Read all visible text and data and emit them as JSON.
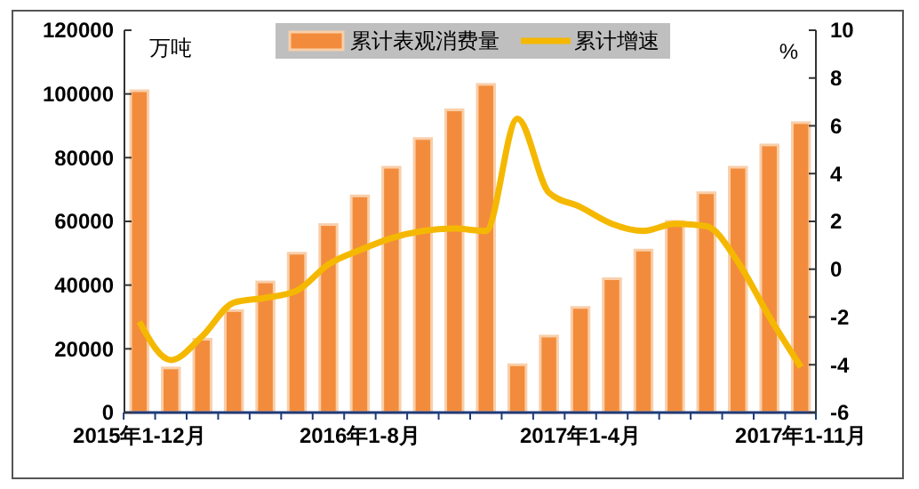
{
  "chart_data": {
    "type": "bar",
    "categories": [
      "2015年1-12月",
      null,
      null,
      null,
      null,
      null,
      null,
      "2016年1-8月",
      null,
      null,
      null,
      null,
      null,
      null,
      "2017年1-4月",
      null,
      null,
      null,
      null,
      null,
      null,
      "2017年1-11月"
    ],
    "series": [
      {
        "name": "累计表观消费量",
        "color": "#f28c3c",
        "values": [
          101000,
          14000,
          23000,
          32000,
          41000,
          50000,
          59000,
          68000,
          77000,
          86000,
          95000,
          103000,
          15000,
          24000,
          33000,
          42000,
          51000,
          60000,
          69000,
          77000,
          84000,
          91000
        ]
      },
      {
        "name": "累计增速",
        "type": "line",
        "axis": "y2",
        "color": "#f5b800",
        "values": [
          -2.2,
          -3.8,
          -2.8,
          -1.4,
          -1.2,
          -0.9,
          0.2,
          0.8,
          1.3,
          1.6,
          1.7,
          1.6,
          6.3,
          3.2,
          2.6,
          1.9,
          1.6,
          1.9,
          1.8,
          0.3,
          -2.0,
          -4.1
        ]
      }
    ],
    "ylim": [
      0,
      120000
    ],
    "yticks": [
      0,
      20000,
      40000,
      60000,
      80000,
      100000,
      120000
    ],
    "y2lim": [
      -6,
      10
    ],
    "y2ticks": [
      -6,
      -4,
      -2,
      0,
      2,
      4,
      6,
      8,
      10
    ],
    "annotations": [
      "万吨",
      "%"
    ],
    "legend": "top",
    "grid": false,
    "marker": "none",
    "line_style": "solid"
  }
}
